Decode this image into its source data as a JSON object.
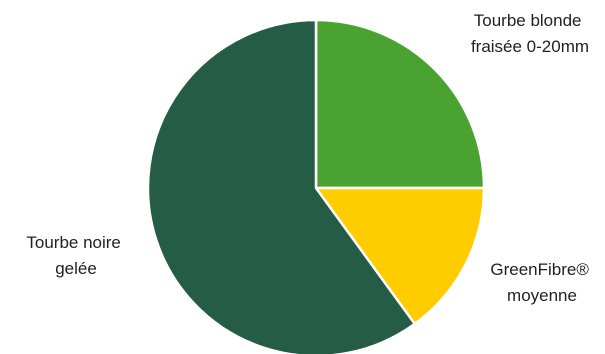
{
  "chart_data": {
    "type": "pie",
    "title": "",
    "start_angle_deg": 0,
    "direction": "clockwise",
    "legend": "none",
    "slices": [
      {
        "label_lines": [
          "Tourbe blonde",
          "fraisée 0-20mm"
        ],
        "value": 25,
        "color": "#4aa330"
      },
      {
        "label_lines": [
          "GreenFibre®",
          "moyenne"
        ],
        "value": 15,
        "color": "#ffcc00"
      },
      {
        "label_lines": [
          "Tourbe noire",
          "gelée"
        ],
        "value": 60,
        "color": "#245c45"
      }
    ]
  },
  "colors": {
    "slice_border": "#ffffff",
    "label_text": "#222222"
  }
}
